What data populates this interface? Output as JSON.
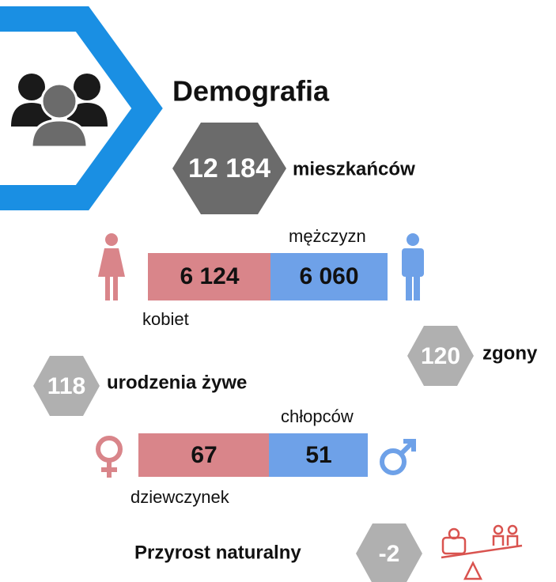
{
  "header": {
    "title": "Demografia"
  },
  "population": {
    "value": "12 184",
    "label": "mieszkańców"
  },
  "gender": {
    "women": {
      "value": "6 124",
      "label": "kobiet"
    },
    "men": {
      "value": "6 060",
      "label": "mężczyzn"
    }
  },
  "deaths": {
    "value": "120",
    "label": "zgony"
  },
  "births": {
    "value": "118",
    "label": "urodzenia żywe",
    "girls": {
      "value": "67",
      "label": "dziewczynek"
    },
    "boys": {
      "value": "51",
      "label": "chłopców"
    }
  },
  "growth": {
    "label": "Przyrost naturalny",
    "value": "-2"
  }
}
